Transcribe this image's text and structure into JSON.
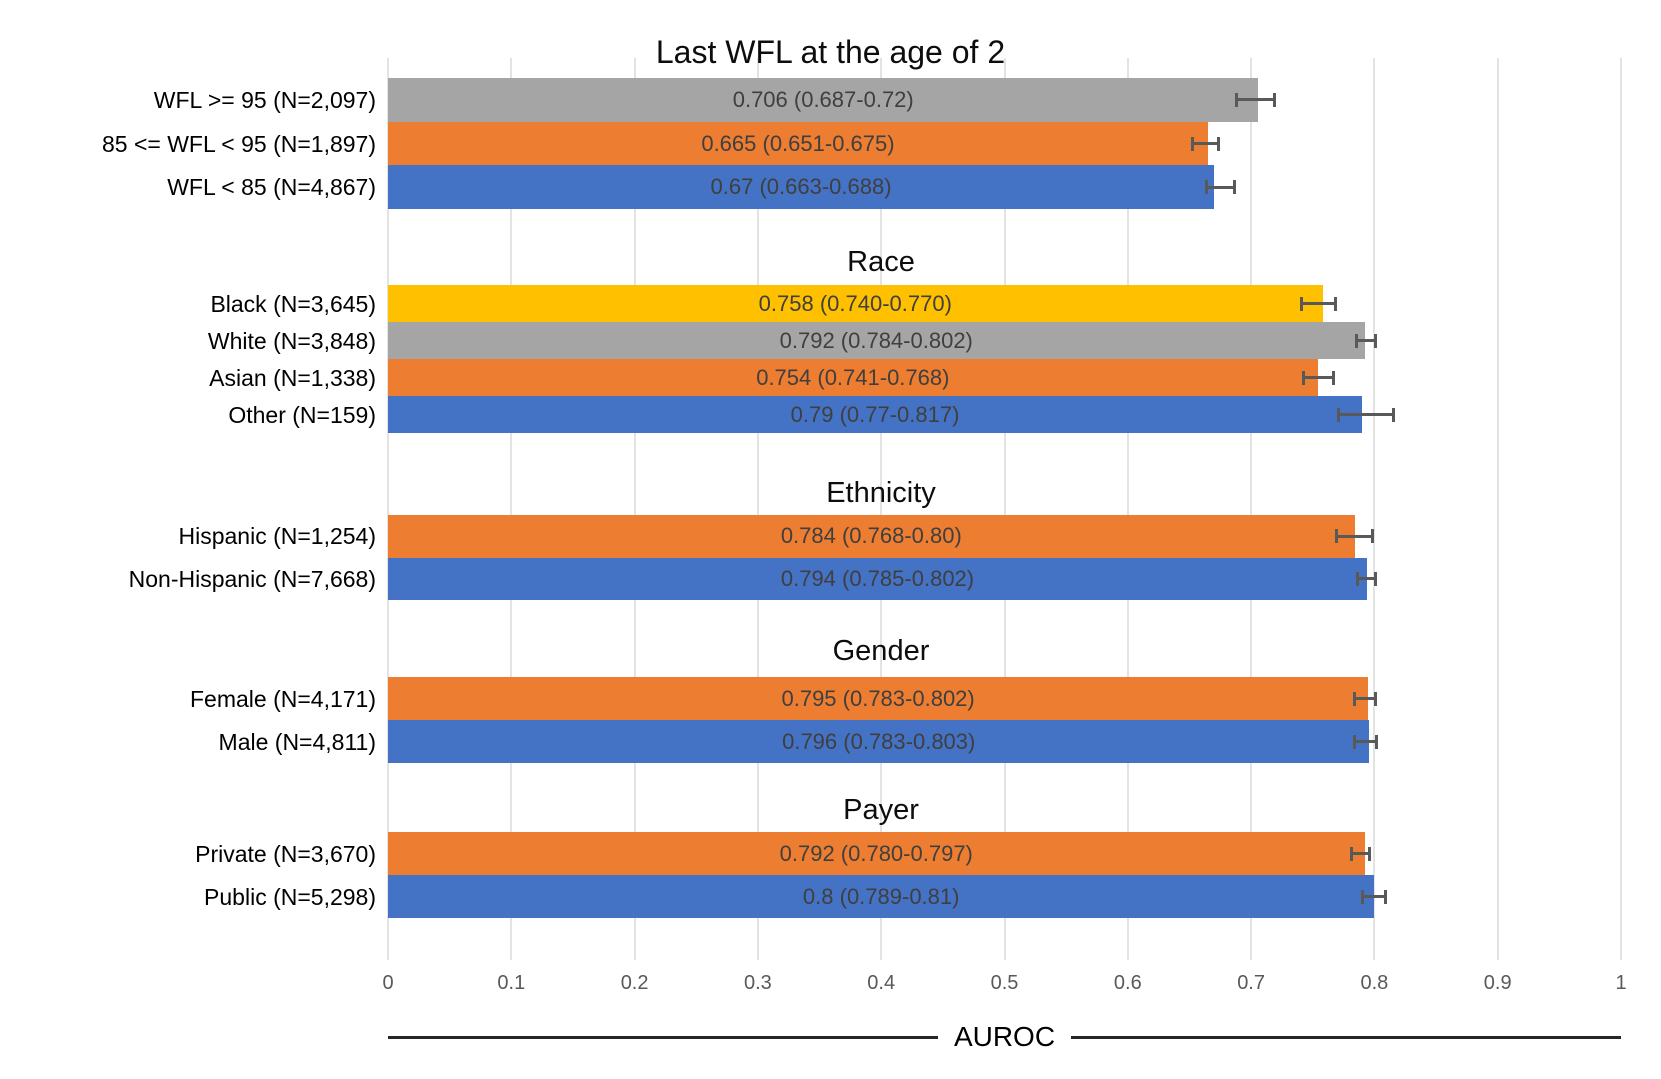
{
  "colors": {
    "blue": "#4472C4",
    "orange": "#ED7D31",
    "gray": "#A5A5A5",
    "yellow": "#FFC000",
    "error_bar": "#595959",
    "gridline": "#E3E3E3",
    "value_label_text": "#3F3F3F"
  },
  "chart_data": {
    "type": "bar",
    "orientation": "horizontal",
    "title": "Last WFL at the age of 2",
    "xlabel": "AUROC",
    "xlim": [
      0,
      1
    ],
    "x_ticks": [
      0,
      0.1,
      0.2,
      0.3,
      0.4,
      0.5,
      0.6,
      0.7,
      0.8,
      0.9,
      1
    ],
    "x_tick_labels": [
      "0",
      "0.1",
      "0.2",
      "0.3",
      "0.4",
      "0.5",
      "0.6",
      "0.7",
      "0.8",
      "0.9",
      "1"
    ],
    "grid": true,
    "legend": false,
    "error_bars": true,
    "sections": [
      {
        "title": "",
        "bars": [
          {
            "label": "WFL >= 95 (N=2,097)",
            "value": 0.706,
            "ci_low": 0.687,
            "ci_high": 0.72,
            "value_label": "0.706 (0.687-0.72)",
            "color": "gray"
          },
          {
            "label": "85 <= WFL < 95 (N=1,897)",
            "value": 0.665,
            "ci_low": 0.651,
            "ci_high": 0.675,
            "value_label": "0.665 (0.651-0.675)",
            "color": "orange"
          },
          {
            "label": "WFL < 85 (N=4,867)",
            "value": 0.67,
            "ci_low": 0.663,
            "ci_high": 0.688,
            "value_label": "0.67 (0.663-0.688)",
            "color": "blue"
          }
        ]
      },
      {
        "title": "Race",
        "bars": [
          {
            "label": "Black (N=3,645)",
            "value": 0.758,
            "ci_low": 0.74,
            "ci_high": 0.77,
            "value_label": "0.758 (0.740-0.770)",
            "color": "yellow"
          },
          {
            "label": "White (N=3,848)",
            "value": 0.792,
            "ci_low": 0.784,
            "ci_high": 0.802,
            "value_label": "0.792 (0.784-0.802)",
            "color": "gray"
          },
          {
            "label": "Asian (N=1,338)",
            "value": 0.754,
            "ci_low": 0.741,
            "ci_high": 0.768,
            "value_label": "0.754 (0.741-0.768)",
            "color": "orange"
          },
          {
            "label": "Other (N=159)",
            "value": 0.79,
            "ci_low": 0.77,
            "ci_high": 0.817,
            "value_label": "0.79 (0.77-0.817)",
            "color": "blue"
          }
        ]
      },
      {
        "title": "Ethnicity",
        "bars": [
          {
            "label": "Hispanic (N=1,254)",
            "value": 0.784,
            "ci_low": 0.768,
            "ci_high": 0.8,
            "value_label": "0.784 (0.768-0.80)",
            "color": "orange"
          },
          {
            "label": "Non-Hispanic (N=7,668)",
            "value": 0.794,
            "ci_low": 0.785,
            "ci_high": 0.802,
            "value_label": "0.794 (0.785-0.802)",
            "color": "blue"
          }
        ]
      },
      {
        "title": "Gender",
        "bars": [
          {
            "label": "Female (N=4,171)",
            "value": 0.795,
            "ci_low": 0.783,
            "ci_high": 0.802,
            "value_label": "0.795 (0.783-0.802)",
            "color": "orange"
          },
          {
            "label": "Male (N=4,811)",
            "value": 0.796,
            "ci_low": 0.783,
            "ci_high": 0.803,
            "value_label": "0.796 (0.783-0.803)",
            "color": "blue"
          }
        ]
      },
      {
        "title": "Payer",
        "bars": [
          {
            "label": "Private (N=3,670)",
            "value": 0.792,
            "ci_low": 0.78,
            "ci_high": 0.797,
            "value_label": "0.792 (0.780-0.797)",
            "color": "orange"
          },
          {
            "label": "Public (N=5,298)",
            "value": 0.8,
            "ci_low": 0.789,
            "ci_high": 0.81,
            "value_label": "0.8 (0.789-0.81)",
            "color": "blue"
          }
        ]
      }
    ]
  }
}
